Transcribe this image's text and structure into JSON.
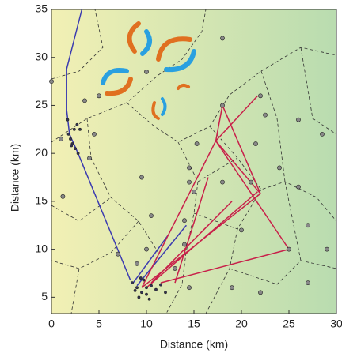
{
  "chart_data": {
    "type": "scatter",
    "xlabel": "Distance (km)",
    "ylabel": "Distance (km)",
    "xlim": [
      0,
      30
    ],
    "ylim": [
      3.3,
      35
    ],
    "xticks": [
      0,
      5,
      10,
      15,
      20,
      25,
      30
    ],
    "yticks": [
      5,
      10,
      15,
      20,
      25,
      30,
      35
    ],
    "series": [
      {
        "style": "line",
        "color": "#3b3bb0",
        "x": [
          3.2,
          1.6,
          1.6,
          1.9,
          2.8,
          8.3,
          null,
          8.6,
          12.3,
          null,
          9,
          14.2
        ],
        "y": [
          35,
          28.8,
          24.5,
          22,
          20,
          6.8,
          null,
          6.5,
          11.5,
          null,
          6.2,
          12.5
        ]
      },
      {
        "style": "line",
        "color": "#c8204a",
        "x": [
          9.5,
          17.3,
          null,
          9.5,
          22,
          null,
          10,
          21.7,
          null,
          10.5,
          19,
          null,
          17.3,
          18,
          22,
          17.3,
          null,
          17.3,
          21.7,
          null,
          17.3,
          25,
          11.5,
          null,
          13,
          16.5
        ],
        "y": [
          6,
          21.3,
          null,
          6,
          15.8,
          null,
          6,
          16,
          null,
          6.5,
          15,
          null,
          21.3,
          25,
          15.8,
          21.3,
          null,
          21.3,
          26,
          null,
          21.3,
          10,
          6.5,
          null,
          6.5,
          17.5
        ]
      },
      {
        "style": "points",
        "color": "#888888",
        "size": 2.6,
        "x": [
          0,
          1,
          1.2,
          4,
          4.5,
          3.5,
          5,
          7,
          9.5,
          10.5,
          10,
          9,
          14,
          14,
          14.5,
          14.5,
          15,
          14.5,
          13,
          15.3,
          18,
          18,
          18,
          19,
          20,
          21,
          22,
          22,
          21.5,
          22.5,
          24,
          26,
          26,
          27,
          28.5,
          27,
          29,
          25,
          10
        ],
        "y": [
          27.5,
          21.5,
          15.5,
          19.5,
          22,
          25.5,
          26,
          9.5,
          17.5,
          13.5,
          10,
          8.5,
          10.5,
          13,
          17,
          18.5,
          16,
          6,
          8,
          21,
          25,
          32,
          17,
          6,
          12,
          17,
          5.5,
          26,
          21,
          24,
          18.5,
          23.5,
          16.5,
          12.5,
          22,
          6.5,
          10,
          10,
          28.5
        ]
      },
      {
        "style": "points",
        "color": "#333355",
        "size": 1.6,
        "x": [
          1.8,
          2,
          2.2,
          2.5,
          2.8,
          2.4,
          2.7,
          2.1,
          3,
          1.7,
          8.5,
          9,
          9.5,
          10,
          10.5,
          9.2,
          10,
          11,
          9.7,
          8.8,
          10.3,
          11.5,
          9.4,
          12
        ],
        "y": [
          22,
          21.5,
          21,
          20.5,
          20,
          22.5,
          23,
          20.8,
          22.5,
          23.5,
          6.5,
          6,
          5.5,
          6,
          6.2,
          5,
          5.3,
          5.8,
          6.8,
          5.7,
          4.8,
          6.3,
          7,
          5.5
        ]
      }
    ]
  }
}
